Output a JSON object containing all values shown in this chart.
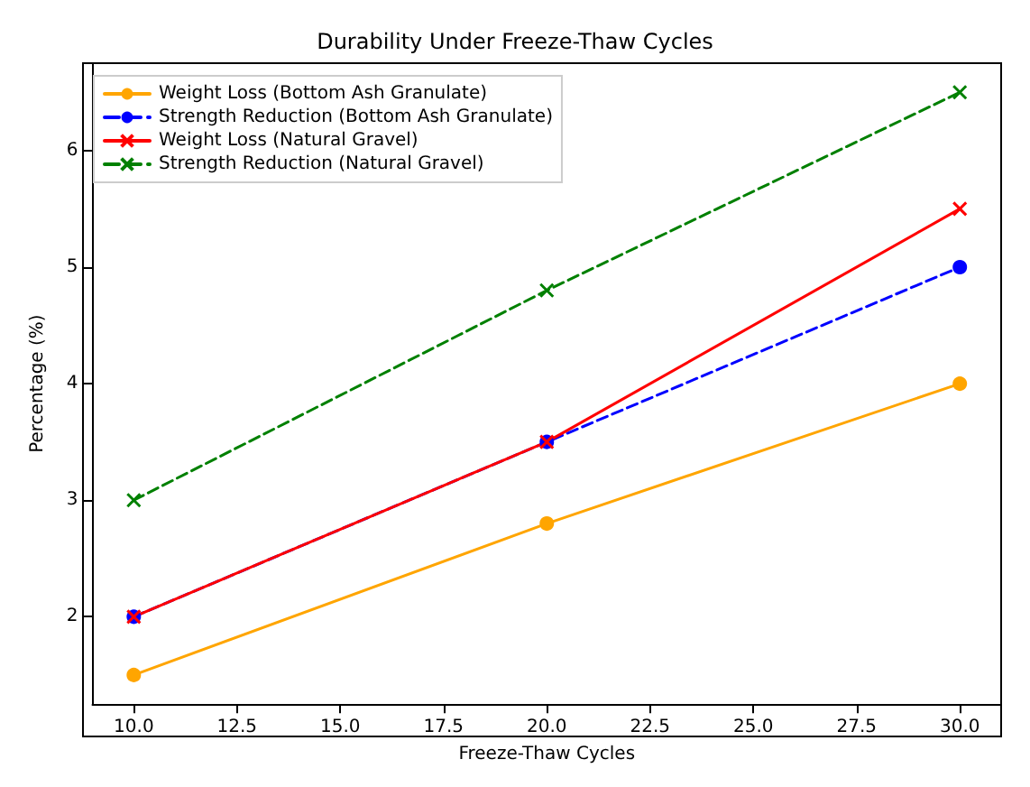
{
  "chart_data": {
    "type": "line",
    "title": "Durability Under Freeze-Thaw Cycles",
    "xlabel": "Freeze-Thaw Cycles",
    "ylabel": "Percentage (%)",
    "x": [
      10,
      20,
      30
    ],
    "series": [
      {
        "name": "Weight Loss (Bottom Ash Granulate)",
        "color": "#ffa500",
        "values": [
          1.5,
          2.8,
          4.0
        ],
        "marker": "circle",
        "line_style": "solid"
      },
      {
        "name": "Strength Reduction (Bottom Ash Granulate)",
        "color": "#0000ff",
        "values": [
          2.0,
          3.5,
          5.0
        ],
        "marker": "circle",
        "line_style": "dashed"
      },
      {
        "name": "Weight Loss (Natural Gravel)",
        "color": "#ff0000",
        "values": [
          2.0,
          3.5,
          5.5
        ],
        "marker": "cross",
        "line_style": "solid"
      },
      {
        "name": "Strength Reduction (Natural Gravel)",
        "color": "#008000",
        "values": [
          3.0,
          4.8,
          6.5
        ],
        "marker": "cross",
        "line_style": "dashed"
      }
    ],
    "xlim": [
      9,
      31
    ],
    "xticks": [
      {
        "value": 10,
        "label": "10.0"
      },
      {
        "value": 12.5,
        "label": "12.5"
      },
      {
        "value": 15,
        "label": "15.0"
      },
      {
        "value": 17.5,
        "label": "17.5"
      },
      {
        "value": 20,
        "label": "20.0"
      },
      {
        "value": 22.5,
        "label": "22.5"
      },
      {
        "value": 25,
        "label": "25.0"
      },
      {
        "value": 27.5,
        "label": "27.5"
      },
      {
        "value": 30,
        "label": "30.0"
      }
    ],
    "ylim": [
      1.25,
      6.75
    ],
    "yticks": [
      2,
      3,
      4,
      5,
      6
    ],
    "grid": false,
    "legend": "top left"
  }
}
